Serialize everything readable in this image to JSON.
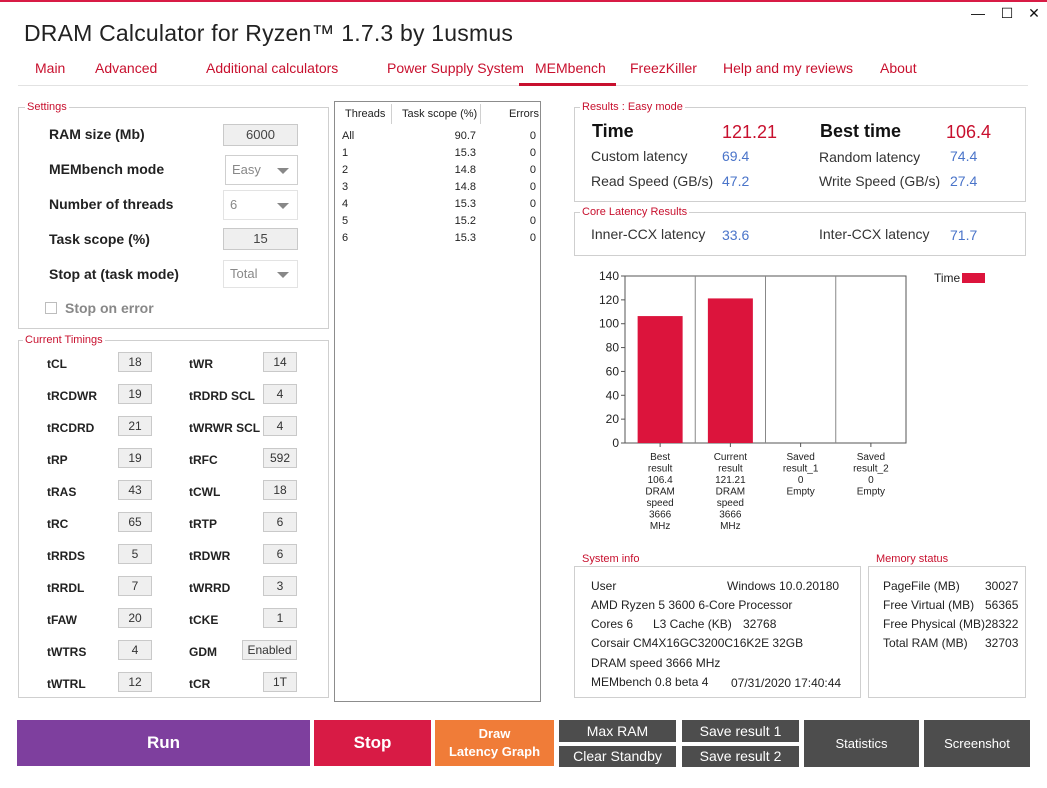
{
  "window": {
    "title": "DRAM Calculator for Ryzen™ 1.7.3 by 1usmus",
    "minimize": "—",
    "maximize": "☐",
    "close": "✕"
  },
  "tabs": [
    "Main",
    "Advanced",
    "Additional calculators",
    "Power Supply System",
    "MEMbench",
    "FreezKiller",
    "Help and my reviews",
    "About"
  ],
  "active_tab": "MEMbench",
  "settings": {
    "legend": "Settings",
    "ram_size_label": "RAM size (Mb)",
    "ram_size_value": "6000",
    "mode_label": "MEMbench mode",
    "mode_value": "Easy",
    "threads_label": "Number of threads",
    "threads_value": "6",
    "task_scope_label": "Task scope (%)",
    "task_scope_value": "15",
    "stop_at_label": "Stop at (task mode)",
    "stop_at_value": "Total",
    "stop_on_error_label": "Stop on error"
  },
  "timings": {
    "legend": "Current Timings",
    "left": [
      {
        "name": "tCL",
        "value": "18"
      },
      {
        "name": "tRCDWR",
        "value": "19"
      },
      {
        "name": "tRCDRD",
        "value": "21"
      },
      {
        "name": "tRP",
        "value": "19"
      },
      {
        "name": "tRAS",
        "value": "43"
      },
      {
        "name": "tRC",
        "value": "65"
      },
      {
        "name": "tRRDS",
        "value": "5"
      },
      {
        "name": "tRRDL",
        "value": "7"
      },
      {
        "name": "tFAW",
        "value": "20"
      },
      {
        "name": "tWTRS",
        "value": "4"
      },
      {
        "name": "tWTRL",
        "value": "12"
      }
    ],
    "right": [
      {
        "name": "tWR",
        "value": "14"
      },
      {
        "name": "tRDRD SCL",
        "value": "4"
      },
      {
        "name": "tWRWR SCL",
        "value": "4"
      },
      {
        "name": "tRFC",
        "value": "592"
      },
      {
        "name": "tCWL",
        "value": "18"
      },
      {
        "name": "tRTP",
        "value": "6"
      },
      {
        "name": "tRDWR",
        "value": "6"
      },
      {
        "name": "tWRRD",
        "value": "3"
      },
      {
        "name": "tCKE",
        "value": "1"
      },
      {
        "name": "GDM",
        "value": "Enabled"
      },
      {
        "name": "tCR",
        "value": "1T"
      }
    ]
  },
  "threads_table": {
    "headers": [
      "Threads",
      "Task scope (%)",
      "Errors"
    ],
    "rows": [
      [
        "All",
        "90.7",
        "0"
      ],
      [
        "1",
        "15.3",
        "0"
      ],
      [
        "2",
        "14.8",
        "0"
      ],
      [
        "3",
        "14.8",
        "0"
      ],
      [
        "4",
        "15.3",
        "0"
      ],
      [
        "5",
        "15.2",
        "0"
      ],
      [
        "6",
        "15.3",
        "0"
      ]
    ]
  },
  "results": {
    "legend": "Results : Easy mode",
    "time_label": "Time",
    "time_value": "121.21",
    "best_time_label": "Best time",
    "best_time_value": "106.4",
    "custom_latency_label": "Custom latency",
    "custom_latency_value": "69.4",
    "random_latency_label": "Random latency",
    "random_latency_value": "74.4",
    "read_speed_label": "Read Speed (GB/s)",
    "read_speed_value": "47.2",
    "write_speed_label": "Write Speed (GB/s)",
    "write_speed_value": "27.4"
  },
  "core_latency": {
    "legend": "Core Latency Results",
    "inner_label": "Inner-CCX latency",
    "inner_value": "33.6",
    "inter_label": "Inter-CCX latency",
    "inter_value": "71.7"
  },
  "chart_data": {
    "type": "bar",
    "categories": [
      [
        "Best",
        "result",
        "106.4",
        "DRAM",
        "speed",
        "3666",
        "MHz"
      ],
      [
        "Current",
        "result",
        "121.21",
        "DRAM",
        "speed",
        "3666",
        "MHz"
      ],
      [
        "Saved",
        "result_1",
        "0",
        "Empty"
      ],
      [
        "Saved",
        "result_2",
        "0",
        "Empty"
      ]
    ],
    "series": [
      {
        "name": "Time",
        "values": [
          106.4,
          121.21,
          0,
          0
        ],
        "color": "#dc143c"
      }
    ],
    "ylim": [
      0,
      140
    ],
    "yticks": [
      0,
      20,
      40,
      60,
      80,
      100,
      120,
      140
    ],
    "grid": "vertical",
    "legend_position": "top-right"
  },
  "system_info": {
    "legend": "System info",
    "user_label": "User",
    "os": "Windows 10.0.20180",
    "cpu": "AMD Ryzen 5 3600 6-Core Processor",
    "cores": "Cores 6",
    "l3_label": "L3 Cache (KB)",
    "l3_value": "32768",
    "memory": "Corsair CM4X16GC3200C16K2E  32GB",
    "dram_speed": "DRAM speed 3666 MHz",
    "membench": "MEMbench 0.8 beta 4",
    "datetime": "07/31/2020 17:40:44"
  },
  "memory_status": {
    "legend": "Memory status",
    "rows": [
      {
        "label": "PageFile (MB)",
        "value": "30027"
      },
      {
        "label": "Free Virtual (MB)",
        "value": "56365"
      },
      {
        "label": "Free Physical (MB)",
        "value": "28322"
      },
      {
        "label": "Total RAM (MB)",
        "value": "32703"
      }
    ]
  },
  "buttons": {
    "run": "Run",
    "stop": "Stop",
    "draw_line1": "Draw",
    "draw_line2": "Latency Graph",
    "max_ram": "Max RAM",
    "clear_standby": "Clear Standby",
    "save1": "Save result 1",
    "save2": "Save result 2",
    "statistics": "Statistics",
    "screenshot": "Screenshot"
  }
}
